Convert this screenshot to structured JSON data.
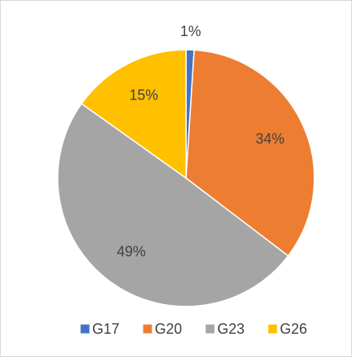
{
  "chart_data": {
    "type": "pie",
    "categories": [
      "G17",
      "G20",
      "G23",
      "G26"
    ],
    "values": [
      1,
      34,
      49,
      15
    ],
    "value_labels": [
      "1%",
      "34%",
      "49%",
      "15%"
    ],
    "colors": [
      "#4472c4",
      "#ed7d31",
      "#a5a5a5",
      "#ffc000"
    ],
    "legend": "bottom"
  }
}
